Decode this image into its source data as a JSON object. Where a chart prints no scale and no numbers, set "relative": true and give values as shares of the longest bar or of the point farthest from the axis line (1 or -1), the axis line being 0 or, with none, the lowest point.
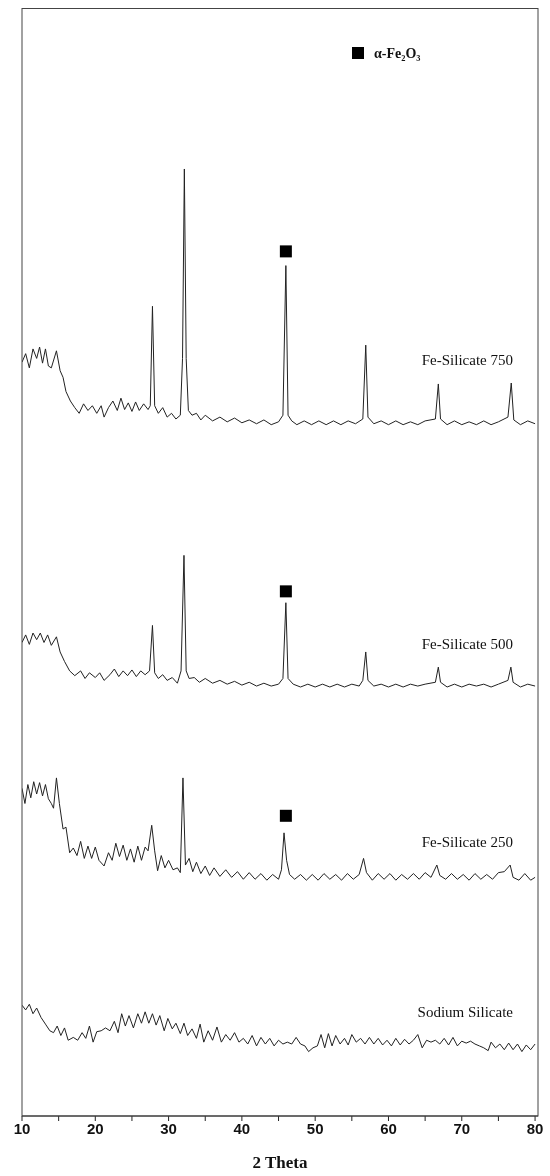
{
  "chart_data": {
    "type": "line",
    "xlabel": "2 Theta",
    "relative": true,
    "xlim": [
      10,
      80.4
    ],
    "xticks": [
      10,
      {
        "value": 15,
        "label": null
      },
      20,
      {
        "value": 25,
        "label": null
      },
      30,
      {
        "value": 35,
        "label": null
      },
      40,
      {
        "value": 45,
        "label": null
      },
      50,
      {
        "value": 55,
        "label": null
      },
      60,
      {
        "value": 65,
        "label": null
      },
      70,
      {
        "value": 75,
        "label": null
      },
      80
    ],
    "legend": "top right",
    "marker": "none",
    "series": [
      {
        "name": "Fe-Silicate 750",
        "color": "#222222",
        "x": [
          10,
          10.5,
          11,
          11.5,
          12,
          12.4,
          12.8,
          13.2,
          13.6,
          14,
          14.7,
          15.2,
          15.6,
          16,
          16.6,
          17.2,
          17.8,
          18.4,
          19,
          19.6,
          20.2,
          20.8,
          21.2,
          21.8,
          22.4,
          23,
          23.5,
          24,
          24.5,
          25,
          25.5,
          26,
          26.6,
          27.2,
          27.5,
          27.8,
          28.1,
          28.6,
          29.2,
          29.8,
          30.4,
          31,
          31.6,
          31.9,
          32.15,
          32.4,
          32.7,
          33.2,
          33.8,
          34.4,
          35,
          36,
          37,
          38,
          39,
          40,
          41,
          42,
          43,
          44,
          45,
          45.6,
          46,
          46.3,
          46.8,
          47.5,
          48.5,
          49.5,
          50.5,
          51.5,
          52.5,
          53.5,
          54.5,
          55.5,
          56.5,
          56.9,
          57.2,
          58,
          59,
          60,
          61,
          62,
          63,
          64,
          65,
          66.4,
          66.8,
          67.1,
          68,
          69,
          70,
          71,
          72,
          73,
          74,
          75,
          76.3,
          76.75,
          77.1,
          78,
          79,
          80
        ],
        "values": [
          0.796,
          0.805,
          0.79,
          0.81,
          0.8,
          0.812,
          0.795,
          0.81,
          0.792,
          0.79,
          0.808,
          0.787,
          0.78,
          0.765,
          0.755,
          0.748,
          0.742,
          0.752,
          0.745,
          0.75,
          0.742,
          0.75,
          0.738,
          0.748,
          0.755,
          0.745,
          0.758,
          0.746,
          0.753,
          0.744,
          0.754,
          0.745,
          0.752,
          0.746,
          0.75,
          0.855,
          0.75,
          0.742,
          0.748,
          0.738,
          0.742,
          0.736,
          0.74,
          0.8,
          1,
          0.8,
          0.745,
          0.74,
          0.742,
          0.735,
          0.74,
          0.734,
          0.738,
          0.733,
          0.737,
          0.732,
          0.735,
          0.731,
          0.735,
          0.73,
          0.733,
          0.74,
          0.898,
          0.74,
          0.734,
          0.73,
          0.734,
          0.73,
          0.734,
          0.73,
          0.734,
          0.73,
          0.734,
          0.731,
          0.736,
          0.814,
          0.738,
          0.731,
          0.734,
          0.73,
          0.734,
          0.73,
          0.733,
          0.73,
          0.734,
          0.736,
          0.773,
          0.736,
          0.73,
          0.734,
          0.73,
          0.733,
          0.73,
          0.734,
          0.73,
          0.733,
          0.738,
          0.774,
          0.735,
          0.73,
          0.734,
          0.731
        ]
      },
      {
        "name": "Fe-Silicate 500",
        "color": "#222222",
        "x": [
          10,
          10.5,
          11,
          11.5,
          12,
          12.5,
          13,
          13.5,
          14,
          14.7,
          15.2,
          15.8,
          16.5,
          17.2,
          18,
          18.6,
          19.2,
          20,
          20.6,
          21.2,
          22,
          22.6,
          23.2,
          23.8,
          24.4,
          25,
          25.6,
          26.2,
          26.8,
          27.4,
          27.8,
          28.1,
          28.6,
          29.2,
          29.8,
          30.5,
          31.2,
          31.7,
          32.1,
          32.4,
          32.8,
          33.5,
          34.2,
          35,
          36,
          37,
          38,
          39,
          40,
          41,
          42,
          43,
          44,
          45,
          45.6,
          46,
          46.3,
          47,
          48,
          49,
          50,
          51,
          52,
          53,
          54,
          55,
          56,
          56.5,
          56.9,
          57.2,
          58,
          59,
          60,
          61,
          62,
          63,
          64,
          65,
          66.4,
          66.8,
          67.1,
          68,
          69,
          70,
          71,
          72,
          73,
          74,
          75,
          76.3,
          76.7,
          77,
          78,
          79,
          80
        ],
        "values": [
          0.5,
          0.508,
          0.498,
          0.51,
          0.503,
          0.51,
          0.5,
          0.508,
          0.497,
          0.506,
          0.49,
          0.48,
          0.47,
          0.465,
          0.47,
          0.462,
          0.468,
          0.463,
          0.468,
          0.46,
          0.466,
          0.472,
          0.464,
          0.47,
          0.465,
          0.471,
          0.464,
          0.47,
          0.466,
          0.47,
          0.518,
          0.468,
          0.462,
          0.466,
          0.46,
          0.463,
          0.457,
          0.47,
          0.592,
          0.47,
          0.462,
          0.463,
          0.458,
          0.462,
          0.457,
          0.46,
          0.456,
          0.459,
          0.455,
          0.458,
          0.454,
          0.457,
          0.454,
          0.456,
          0.462,
          0.542,
          0.462,
          0.456,
          0.453,
          0.456,
          0.453,
          0.456,
          0.453,
          0.456,
          0.453,
          0.456,
          0.454,
          0.46,
          0.49,
          0.46,
          0.454,
          0.456,
          0.453,
          0.456,
          0.453,
          0.456,
          0.454,
          0.456,
          0.458,
          0.474,
          0.458,
          0.453,
          0.456,
          0.453,
          0.456,
          0.454,
          0.456,
          0.453,
          0.456,
          0.46,
          0.474,
          0.458,
          0.453,
          0.456,
          0.454
        ]
      },
      {
        "name": "Fe-Silicate 250",
        "color": "#222222",
        "x": [
          10,
          10.4,
          10.8,
          11.2,
          11.6,
          12,
          12.4,
          12.8,
          13.2,
          13.6,
          14,
          14.3,
          14.7,
          15.1,
          15.6,
          16,
          16.5,
          17,
          17.5,
          18,
          18.5,
          19,
          19.5,
          20,
          20.5,
          21.2,
          21.8,
          22.3,
          22.8,
          23.3,
          23.8,
          24.3,
          24.8,
          25.3,
          25.8,
          26.3,
          26.8,
          27.2,
          27.7,
          28.1,
          28.5,
          29,
          29.5,
          30,
          30.6,
          31.2,
          31.6,
          31.96,
          32.3,
          32.8,
          33.3,
          33.8,
          34.4,
          35,
          35.6,
          36.2,
          37,
          37.8,
          38.6,
          39.4,
          40.2,
          41,
          41.8,
          42.6,
          43.4,
          44.2,
          45,
          45.4,
          45.75,
          46.1,
          46.5,
          47.2,
          48,
          48.8,
          49.6,
          50.4,
          51.2,
          52,
          52.8,
          53.6,
          54.4,
          55.2,
          56,
          56.6,
          57,
          57.8,
          58.6,
          59.4,
          60.2,
          61,
          61.8,
          62.6,
          63.4,
          64.2,
          65,
          65.8,
          66.6,
          67,
          67.8,
          68.6,
          69.4,
          70.2,
          71,
          71.8,
          72.6,
          73.4,
          74.2,
          75,
          75.8,
          76.6,
          77,
          77.8,
          78.6,
          79.4,
          80
        ],
        "values": [
          0.346,
          0.33,
          0.35,
          0.336,
          0.353,
          0.34,
          0.352,
          0.338,
          0.35,
          0.335,
          0.33,
          0.325,
          0.357,
          0.33,
          0.303,
          0.305,
          0.278,
          0.283,
          0.275,
          0.29,
          0.272,
          0.285,
          0.272,
          0.284,
          0.27,
          0.264,
          0.278,
          0.27,
          0.288,
          0.274,
          0.286,
          0.27,
          0.282,
          0.268,
          0.285,
          0.27,
          0.284,
          0.28,
          0.307,
          0.28,
          0.259,
          0.275,
          0.262,
          0.27,
          0.26,
          0.262,
          0.257,
          0.357,
          0.265,
          0.272,
          0.258,
          0.268,
          0.256,
          0.264,
          0.254,
          0.262,
          0.253,
          0.26,
          0.252,
          0.258,
          0.25,
          0.257,
          0.25,
          0.256,
          0.249,
          0.255,
          0.25,
          0.26,
          0.299,
          0.27,
          0.255,
          0.25,
          0.255,
          0.249,
          0.255,
          0.249,
          0.256,
          0.25,
          0.255,
          0.249,
          0.256,
          0.25,
          0.255,
          0.272,
          0.257,
          0.249,
          0.256,
          0.25,
          0.256,
          0.249,
          0.255,
          0.25,
          0.256,
          0.25,
          0.257,
          0.252,
          0.265,
          0.254,
          0.25,
          0.256,
          0.25,
          0.255,
          0.249,
          0.256,
          0.25,
          0.255,
          0.25,
          0.257,
          0.258,
          0.265,
          0.252,
          0.249,
          0.256,
          0.249,
          0.252
        ]
      },
      {
        "name": "Sodium Silicate",
        "color": "#222222",
        "x": [
          10,
          10.5,
          11,
          11.5,
          12,
          12.6,
          13.2,
          13.8,
          14.3,
          14.8,
          15.3,
          15.8,
          16.3,
          17,
          17.6,
          18.2,
          18.7,
          19.2,
          19.7,
          20.2,
          20.8,
          21.4,
          22,
          22.6,
          23.1,
          23.6,
          24.1,
          24.6,
          25.2,
          25.8,
          26.3,
          26.8,
          27.3,
          27.8,
          28.3,
          28.8,
          29.4,
          29.9,
          30.5,
          31,
          31.6,
          32.1,
          32.6,
          33.2,
          33.8,
          34.3,
          34.8,
          35.4,
          36,
          36.6,
          37.2,
          37.8,
          38.4,
          39,
          39.6,
          40.2,
          40.8,
          41.4,
          42,
          42.6,
          43.2,
          43.8,
          44.4,
          45,
          45.6,
          46.2,
          46.8,
          47.4,
          48,
          48.6,
          49.1,
          49.7,
          50.3,
          50.8,
          51.3,
          51.8,
          52.3,
          52.8,
          53.4,
          54,
          54.5,
          55,
          55.6,
          56.2,
          56.8,
          57.4,
          58,
          58.6,
          59.2,
          59.8,
          60.4,
          61,
          61.6,
          62.2,
          62.8,
          63.4,
          64,
          64.6,
          65.2,
          65.8,
          66.4,
          67,
          67.6,
          68.2,
          68.8,
          69.4,
          70,
          70.6,
          71.2,
          71.8,
          72.4,
          73,
          73.6,
          74,
          74.6,
          75.2,
          75.8,
          76.4,
          77,
          77.6,
          78.2,
          78.8,
          79.4,
          80
        ],
        "values": [
          0.117,
          0.112,
          0.118,
          0.108,
          0.114,
          0.104,
          0.097,
          0.09,
          0.088,
          0.095,
          0.085,
          0.093,
          0.08,
          0.083,
          0.08,
          0.088,
          0.082,
          0.095,
          0.078,
          0.089,
          0.09,
          0.093,
          0.09,
          0.1,
          0.088,
          0.108,
          0.095,
          0.106,
          0.093,
          0.108,
          0.098,
          0.11,
          0.098,
          0.108,
          0.096,
          0.106,
          0.09,
          0.103,
          0.092,
          0.098,
          0.087,
          0.098,
          0.085,
          0.092,
          0.082,
          0.097,
          0.078,
          0.09,
          0.08,
          0.094,
          0.078,
          0.086,
          0.08,
          0.088,
          0.078,
          0.082,
          0.076,
          0.085,
          0.074,
          0.083,
          0.076,
          0.082,
          0.074,
          0.08,
          0.076,
          0.078,
          0.076,
          0.083,
          0.076,
          0.074,
          0.068,
          0.072,
          0.074,
          0.086,
          0.072,
          0.087,
          0.074,
          0.085,
          0.076,
          0.082,
          0.075,
          0.086,
          0.078,
          0.082,
          0.076,
          0.083,
          0.076,
          0.082,
          0.075,
          0.08,
          0.074,
          0.082,
          0.075,
          0.081,
          0.076,
          0.08,
          0.086,
          0.072,
          0.08,
          0.078,
          0.08,
          0.076,
          0.082,
          0.075,
          0.083,
          0.074,
          0.079,
          0.077,
          0.079,
          0.076,
          0.074,
          0.072,
          0.069,
          0.078,
          0.072,
          0.076,
          0.07,
          0.077,
          0.07,
          0.076,
          0.068,
          0.075,
          0.07,
          0.076
        ]
      },
      {
        "name": "α-Fe₂O₃",
        "type": "scatter",
        "marker": "square",
        "color": "#000000",
        "x": [
          46,
          46,
          46
        ],
        "values": [
          0.913,
          0.554,
          0.317
        ]
      }
    ]
  }
}
